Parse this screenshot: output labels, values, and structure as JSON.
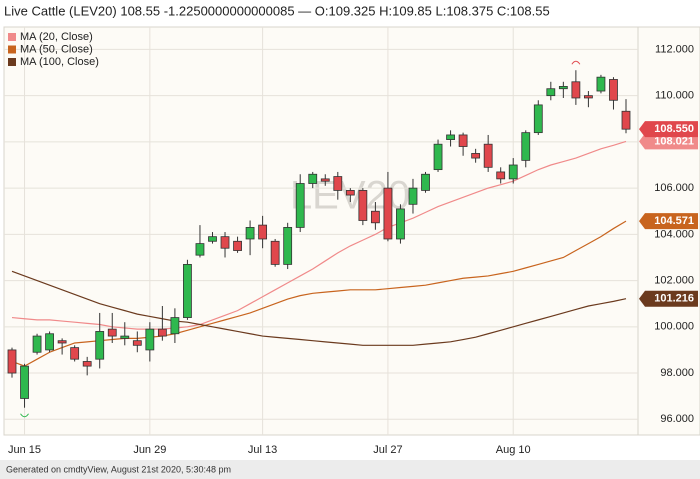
{
  "chart_data": {
    "type": "candlestick",
    "title": "Live Cattle (LEV20) 108.55 -1.2250000000000085 — O:109.325 H:109.85 L:108.375 C:108.55",
    "watermark": "LEV20",
    "footer": "Generated on cmdtyView, August 21st 2020, 5:30:48 pm",
    "categories": [
      null,
      "Jun 15",
      null,
      null,
      null,
      null,
      null,
      null,
      null,
      null,
      null,
      "Jun 29",
      null,
      null,
      null,
      null,
      null,
      null,
      null,
      null,
      "Jul 13",
      null,
      null,
      null,
      null,
      null,
      null,
      null,
      null,
      null,
      "Jul 27",
      null,
      null,
      null,
      null,
      null,
      null,
      null,
      null,
      null,
      "Aug 10",
      null,
      null,
      null,
      null,
      null,
      null,
      null,
      null,
      null
    ],
    "open": [
      99.0,
      96.9,
      98.9,
      99.0,
      99.4,
      99.1,
      98.5,
      98.6,
      99.9,
      99.5,
      99.4,
      99.0,
      99.9,
      99.7,
      100.4,
      103.1,
      103.7,
      103.9,
      103.7,
      103.8,
      104.4,
      103.7,
      102.7,
      104.3,
      106.2,
      106.4,
      106.5,
      105.9,
      105.9,
      105.0,
      106.0,
      103.8,
      105.3,
      105.9,
      106.8,
      108.1,
      108.3,
      107.5,
      107.9,
      106.7,
      106.4,
      107.2,
      108.4,
      110.0,
      110.3,
      110.6,
      110.0,
      110.2,
      110.7,
      109.325
    ],
    "high": [
      99.1,
      98.4,
      99.7,
      99.8,
      99.5,
      99.2,
      98.7,
      100.6,
      100.6,
      100.2,
      99.8,
      100.2,
      100.9,
      100.8,
      102.9,
      104.4,
      104.1,
      104.1,
      103.9,
      104.6,
      104.8,
      103.8,
      104.5,
      106.6,
      106.7,
      106.6,
      106.7,
      106.0,
      106.0,
      105.4,
      106.7,
      105.3,
      106.4,
      106.7,
      108.1,
      108.5,
      108.4,
      107.7,
      108.3,
      106.9,
      107.3,
      108.5,
      109.8,
      110.6,
      110.6,
      111.1,
      110.2,
      110.9,
      110.8,
      109.85
    ],
    "low": [
      97.8,
      96.5,
      98.8,
      98.9,
      98.8,
      98.5,
      97.9,
      98.2,
      99.3,
      99.2,
      98.9,
      98.5,
      99.4,
      99.3,
      100.3,
      103.0,
      103.6,
      103.0,
      103.2,
      103.1,
      103.4,
      102.6,
      102.5,
      104.1,
      106.0,
      106.1,
      105.5,
      105.4,
      104.4,
      104.2,
      103.7,
      103.6,
      104.9,
      105.8,
      106.7,
      107.8,
      107.4,
      107.1,
      106.7,
      106.2,
      106.2,
      106.9,
      108.3,
      109.8,
      109.9,
      109.6,
      109.5,
      110.1,
      109.4,
      108.375
    ],
    "close": [
      98.0,
      98.3,
      99.6,
      99.7,
      99.3,
      98.6,
      98.3,
      99.8,
      99.6,
      99.6,
      99.2,
      99.9,
      99.6,
      100.4,
      102.7,
      103.6,
      103.9,
      103.4,
      103.3,
      104.3,
      103.8,
      102.7,
      104.3,
      106.2,
      106.6,
      106.3,
      105.9,
      105.7,
      104.6,
      104.5,
      103.8,
      105.1,
      106.0,
      106.6,
      107.9,
      108.3,
      107.8,
      107.3,
      106.9,
      106.4,
      107.0,
      108.4,
      109.6,
      110.3,
      110.4,
      109.9,
      109.9,
      110.8,
      109.8,
      108.55
    ],
    "up_color": "#2fb84e",
    "down_color": "#e0474c",
    "series": [
      {
        "name": "MA (20, Close)",
        "color": "#f08a8a",
        "values": [
          100.4,
          100.35,
          100.3,
          100.3,
          100.25,
          100.2,
          100.15,
          100.1,
          100.0,
          99.95,
          99.9,
          99.9,
          99.9,
          99.95,
          100.0,
          100.1,
          100.3,
          100.5,
          100.7,
          101.0,
          101.3,
          101.6,
          101.9,
          102.2,
          102.5,
          102.85,
          103.2,
          103.5,
          103.75,
          104.0,
          104.3,
          104.5,
          104.7,
          104.95,
          105.2,
          105.4,
          105.6,
          105.8,
          106.0,
          106.15,
          106.3,
          106.55,
          106.8,
          107.0,
          107.15,
          107.3,
          107.5,
          107.7,
          107.85,
          108.021
        ]
      },
      {
        "name": "MA (50, Close)",
        "color": "#c8641e",
        "values": [
          98.5,
          98.3,
          98.6,
          98.9,
          99.1,
          99.3,
          99.35,
          99.4,
          99.45,
          99.5,
          99.5,
          99.55,
          99.6,
          99.7,
          99.85,
          100.0,
          100.15,
          100.3,
          100.45,
          100.6,
          100.8,
          101.0,
          101.2,
          101.35,
          101.45,
          101.5,
          101.55,
          101.6,
          101.6,
          101.6,
          101.65,
          101.7,
          101.75,
          101.8,
          101.9,
          102.0,
          102.1,
          102.15,
          102.2,
          102.3,
          102.4,
          102.55,
          102.7,
          102.85,
          103.0,
          103.3,
          103.6,
          103.9,
          104.25,
          104.571
        ]
      },
      {
        "name": "MA (100, Close)",
        "color": "#6b3a1e",
        "values": [
          102.4,
          102.2,
          102.0,
          101.8,
          101.6,
          101.4,
          101.2,
          101.0,
          100.85,
          100.7,
          100.55,
          100.45,
          100.35,
          100.25,
          100.2,
          100.1,
          100.0,
          99.9,
          99.8,
          99.7,
          99.6,
          99.55,
          99.5,
          99.45,
          99.4,
          99.35,
          99.3,
          99.25,
          99.2,
          99.2,
          99.2,
          99.2,
          99.2,
          99.25,
          99.3,
          99.35,
          99.45,
          99.55,
          99.7,
          99.85,
          100.0,
          100.15,
          100.3,
          100.45,
          100.6,
          100.75,
          100.9,
          101.0,
          101.1,
          101.216
        ]
      }
    ],
    "price_tags": [
      {
        "value": 108.021,
        "label": "108.021",
        "color": "#f08a8a"
      },
      {
        "value": 104.571,
        "label": "104.571",
        "color": "#c8641e"
      },
      {
        "value": 101.216,
        "label": "101.216",
        "color": "#6b3a1e"
      },
      {
        "value": 108.55,
        "label": "108.550",
        "color": "#e0474c"
      }
    ],
    "ylim": [
      95.32,
      112.97
    ],
    "yticks": [
      {
        "value": 96,
        "label": "96.000"
      },
      {
        "value": 98,
        "label": "98.000"
      },
      {
        "value": 100,
        "label": "100.000"
      },
      {
        "value": 102,
        "label": "102.000"
      },
      {
        "value": 104,
        "label": "104.000"
      },
      {
        "value": 106,
        "label": "106.000"
      },
      {
        "value": 108,
        "label": "108.000"
      },
      {
        "value": 110,
        "label": "110.000"
      },
      {
        "value": 112,
        "label": "112.000"
      }
    ],
    "grid": true
  }
}
